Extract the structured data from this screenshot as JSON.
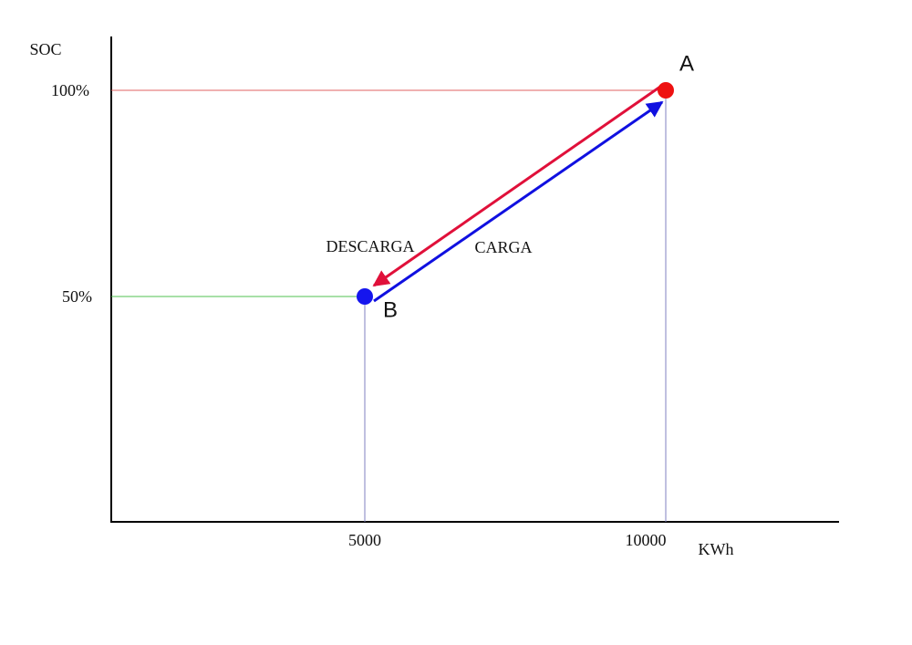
{
  "axes": {
    "y_label": "SOC",
    "x_label": "KWh",
    "y_ticks": [
      "100%",
      "50%"
    ],
    "x_ticks": [
      "5000",
      "10000"
    ]
  },
  "points": [
    {
      "label": "A"
    },
    {
      "label": "B"
    }
  ],
  "arrows": [
    {
      "label": "DESCARGA"
    },
    {
      "label": "CARGA"
    }
  ]
}
